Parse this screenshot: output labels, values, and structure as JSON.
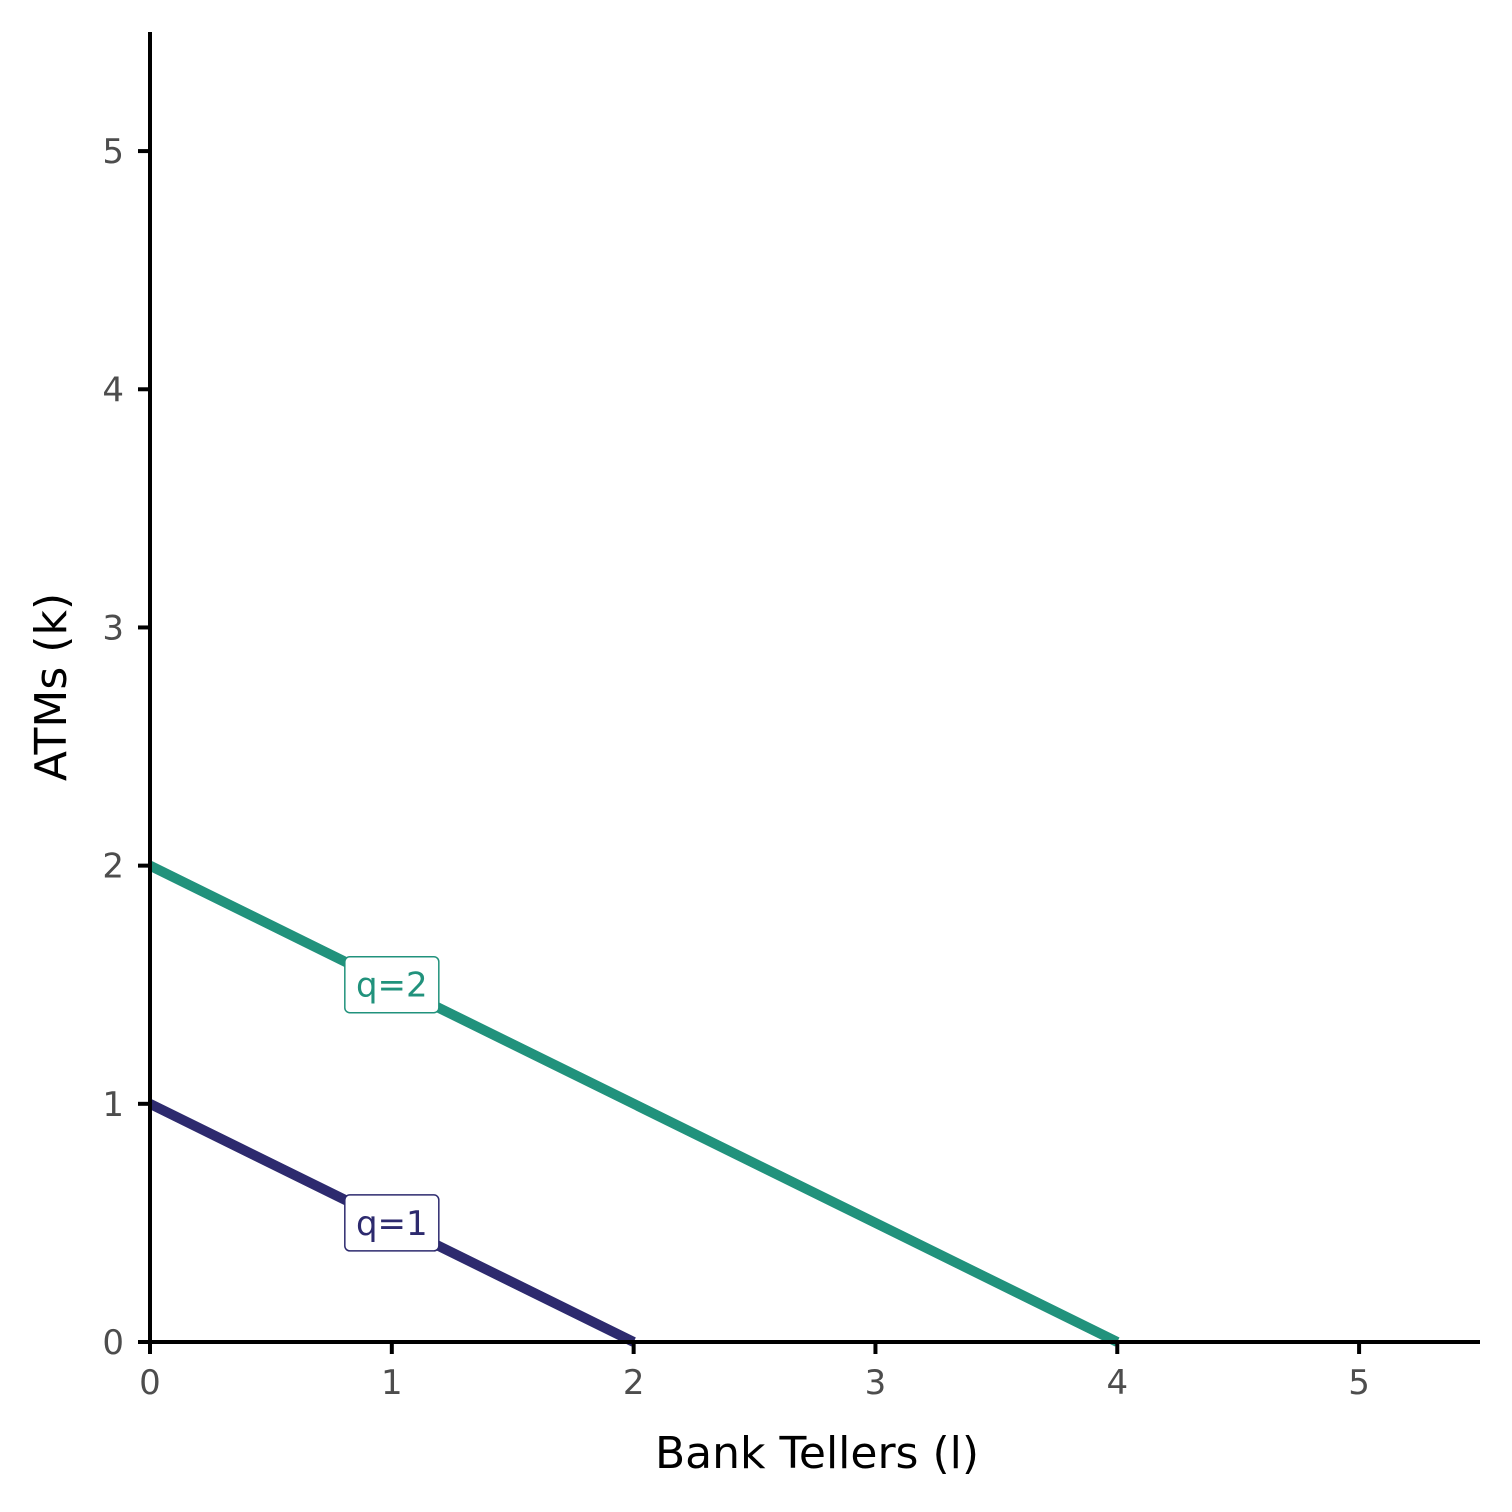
{
  "chart_data": {
    "type": "line",
    "title": "",
    "xlabel": "Bank Tellers (l)",
    "ylabel": "ATMs (k)",
    "xlim": [
      0,
      5.5
    ],
    "ylim": [
      0,
      5.5
    ],
    "x_ticks": [
      0,
      1,
      2,
      3,
      4,
      5
    ],
    "y_ticks": [
      0,
      1,
      2,
      3,
      4,
      5
    ],
    "x_tick_labels": [
      "0",
      "1",
      "2",
      "3",
      "4",
      "5"
    ],
    "y_tick_labels": [
      "0",
      "1",
      "2",
      "3",
      "4",
      "5"
    ],
    "grid": false,
    "legend": "none",
    "series": [
      {
        "name": "q=1",
        "color": "#2d2a6e",
        "points": [
          {
            "x": 0,
            "y": 1
          },
          {
            "x": 2,
            "y": 0
          }
        ],
        "label_at": {
          "x": 1,
          "y": 0.5
        }
      },
      {
        "name": "q=2",
        "color": "#21927c",
        "points": [
          {
            "x": 0,
            "y": 2
          },
          {
            "x": 4,
            "y": 0
          }
        ],
        "label_at": {
          "x": 1,
          "y": 1.5
        }
      }
    ]
  }
}
